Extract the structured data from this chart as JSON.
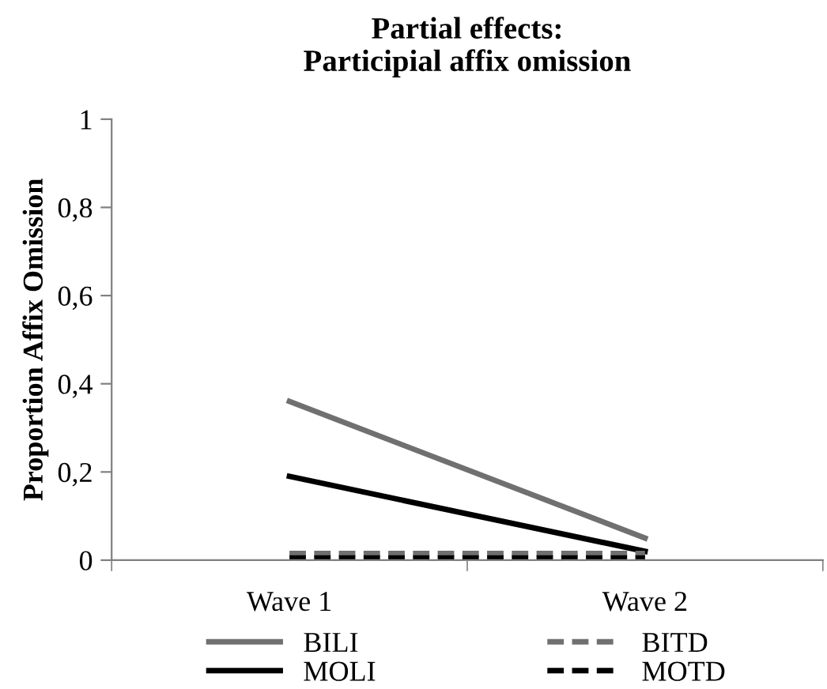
{
  "chart_data": {
    "type": "line",
    "title": "Partial effects:\nParticipial affix omission",
    "ylabel": "Proportion Affix Omission",
    "categories": [
      "Wave 1",
      "Wave 2"
    ],
    "series": [
      {
        "name": "BILI",
        "color": "#707070",
        "values": [
          0.36,
          0.05
        ],
        "line_style": "solid"
      },
      {
        "name": "MOLI",
        "color": "#000000",
        "values": [
          0.19,
          0.02
        ],
        "line_style": "solid"
      },
      {
        "name": "BITD",
        "color": "#707070",
        "values": [
          0.015,
          0.015
        ],
        "line_style": "dashed"
      },
      {
        "name": "MOTD",
        "color": "#000000",
        "values": [
          0.005,
          0.005
        ],
        "line_style": "dashed"
      }
    ],
    "ylim": [
      0,
      1
    ],
    "yticks": [
      0,
      {
        "value": 0.2,
        "label": "0,2"
      },
      {
        "value": 0.4,
        "label": "0,4"
      },
      {
        "value": 0.6,
        "label": "0,6"
      },
      {
        "value": 0.8,
        "label": "0,8"
      },
      1
    ],
    "grid": false,
    "legend": "bottom",
    "marker": "none"
  }
}
